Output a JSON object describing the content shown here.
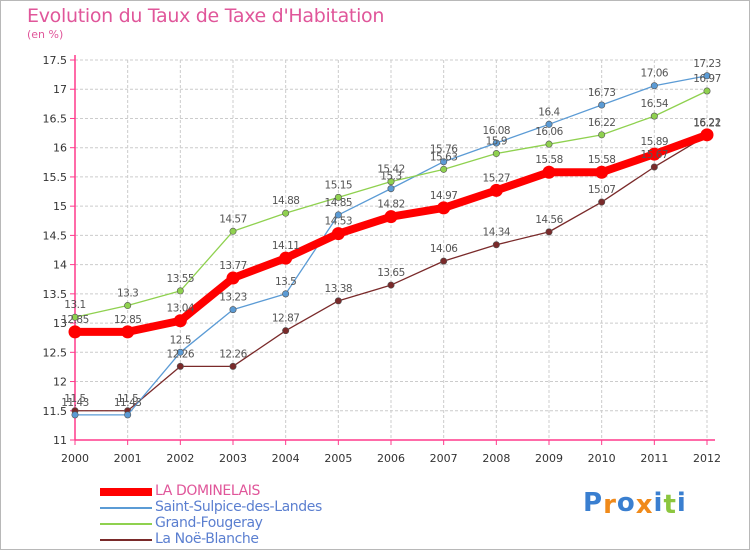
{
  "header": {
    "title": "Evolution du Taux de Taxe d'Habitation",
    "subtitle": "(en %)"
  },
  "colors": {
    "title": "#e0569a",
    "axis": "#ff3a8c",
    "grid": "#cccccc",
    "tick_text": "#333333",
    "label_text": "#555555"
  },
  "chart_data": {
    "type": "line",
    "title": "Evolution du Taux de Taxe d'Habitation",
    "subtitle": "(en %)",
    "xlabel": "",
    "ylabel": "",
    "x": [
      "2000",
      "2001",
      "2002",
      "2003",
      "2004",
      "2005",
      "2006",
      "2007",
      "2008",
      "2009",
      "2010",
      "2011",
      "2012"
    ],
    "ylim": [
      11,
      17.5
    ],
    "yticks": [
      "11",
      "11.5",
      "12",
      "12.5",
      "13",
      "13.5",
      "14",
      "14.5",
      "15",
      "15.5",
      "16",
      "16.5",
      "17",
      "17.5"
    ],
    "grid": true,
    "legend_position": "bottom-left",
    "series": [
      {
        "name": "LA DOMINELAIS",
        "color": "#ff0000",
        "labels": [
          "12.85",
          "12.85",
          "13.04",
          "13.77",
          "14.11",
          "14.53",
          "14.82",
          "14.97",
          "15.27",
          "15.58",
          "15.58",
          "15.89",
          "16.22"
        ],
        "values": [
          12.85,
          12.85,
          13.04,
          13.77,
          14.11,
          14.53,
          14.82,
          14.97,
          15.27,
          15.58,
          15.58,
          15.89,
          16.22
        ]
      },
      {
        "name": "Saint-Sulpice-des-Landes",
        "color": "#5b9bd5",
        "labels": [
          "11.43",
          "11.43",
          "12.5",
          "13.23",
          "13.5",
          "14.85",
          "15.3",
          "15.76",
          "16.08",
          "16.4",
          "16.73",
          "17.06",
          "17.23"
        ],
        "values": [
          11.43,
          11.43,
          12.5,
          13.23,
          13.5,
          14.85,
          15.3,
          15.76,
          16.08,
          16.4,
          16.73,
          17.06,
          17.23
        ]
      },
      {
        "name": "Grand-Fougeray",
        "color": "#8fd14f",
        "labels": [
          "13.1",
          "13.3",
          "13.55",
          "14.57",
          "14.88",
          "15.15",
          "15.42",
          "15.63",
          "15.9",
          "16.06",
          "16.22",
          "16.54",
          "16.97"
        ],
        "values": [
          13.1,
          13.3,
          13.55,
          14.57,
          14.88,
          15.15,
          15.42,
          15.63,
          15.9,
          16.06,
          16.22,
          16.54,
          16.97
        ]
      },
      {
        "name": "La Noë-Blanche",
        "color": "#7a2a2a",
        "labels": [
          "11.5",
          "11.5",
          "12.26",
          "12.26",
          "12.87",
          "13.38",
          "13.65",
          "14.06",
          "14.34",
          "14.56",
          "15.07",
          "15.67",
          "16.21"
        ],
        "values": [
          11.5,
          11.5,
          12.26,
          12.26,
          12.87,
          13.38,
          13.65,
          14.06,
          14.34,
          14.56,
          15.07,
          15.67,
          16.21
        ]
      }
    ]
  },
  "logo": {
    "text": "Proxiti",
    "letters": [
      "P",
      "r",
      "o",
      "x",
      "i",
      "t",
      "i"
    ],
    "letter_colors": [
      "#3a7fd0",
      "#f08a1a",
      "#3a7fd0",
      "#f08a1a",
      "#3a7fd0",
      "#8cc63f",
      "#3a7fd0"
    ]
  }
}
